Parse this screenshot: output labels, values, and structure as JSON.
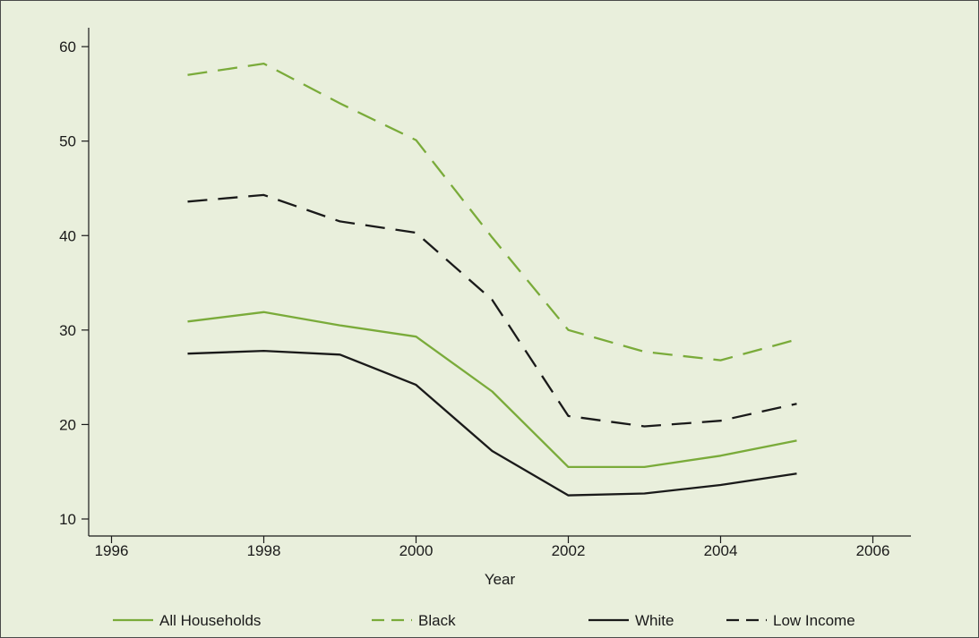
{
  "colors": {
    "background": "#e9efdc",
    "axis": "#1a1a1a",
    "green": "#7aab3a",
    "black": "#1a1a1a"
  },
  "chart_data": {
    "type": "line",
    "title": "",
    "xlabel": "Year",
    "ylabel": "",
    "xlim": [
      1995.7,
      2006.5
    ],
    "ylim": [
      8.2,
      62
    ],
    "xticks": [
      1996,
      1998,
      2000,
      2002,
      2004,
      2006
    ],
    "yticks": [
      10,
      20,
      30,
      40,
      50,
      60
    ],
    "grid": false,
    "legend_position": "bottom",
    "series": [
      {
        "name": "All Households",
        "color": "#7aab3a",
        "dash": "solid",
        "x": [
          1997,
          1998,
          1999,
          2000,
          2001,
          2002,
          2003,
          2004,
          2005
        ],
        "y": [
          30.9,
          31.9,
          30.5,
          29.3,
          23.5,
          15.5,
          15.5,
          16.7,
          18.3
        ]
      },
      {
        "name": "Black",
        "color": "#7aab3a",
        "dash": "dashed",
        "x": [
          1997,
          1998,
          1999,
          2000,
          2001,
          2002,
          2003,
          2004,
          2005
        ],
        "y": [
          57.0,
          58.2,
          54.0,
          50.1,
          39.8,
          30.0,
          27.7,
          26.8,
          29.0
        ]
      },
      {
        "name": "White",
        "color": "#1a1a1a",
        "dash": "solid",
        "x": [
          1997,
          1998,
          1999,
          2000,
          2001,
          2002,
          2003,
          2004,
          2005
        ],
        "y": [
          27.5,
          27.8,
          27.4,
          24.2,
          17.2,
          12.5,
          12.7,
          13.6,
          14.8
        ]
      },
      {
        "name": "Low Income",
        "color": "#1a1a1a",
        "dash": "dashed",
        "x": [
          1997,
          1998,
          1999,
          2000,
          2001,
          2002,
          2003,
          2004,
          2005
        ],
        "y": [
          43.6,
          44.3,
          41.5,
          40.3,
          33.2,
          20.9,
          19.8,
          20.4,
          22.2
        ]
      }
    ]
  }
}
